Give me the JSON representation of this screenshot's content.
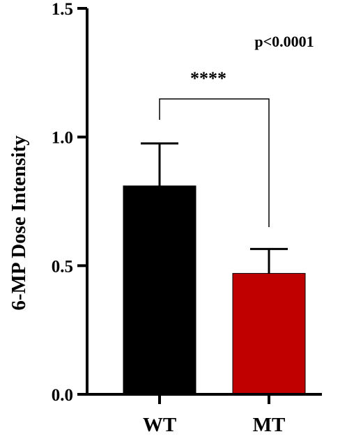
{
  "chart_data": {
    "type": "bar",
    "title": "",
    "xlabel": "",
    "ylabel": "6-MP Dose Intensity",
    "ylim": [
      0,
      1.5
    ],
    "yticks": [
      0.0,
      0.5,
      1.0,
      1.5
    ],
    "ytick_labels": [
      "0.0",
      "0.5",
      "1.0",
      "1.5"
    ],
    "categories": [
      "WT",
      "MT"
    ],
    "values": [
      0.81,
      0.47
    ],
    "errors": [
      0.165,
      0.095
    ],
    "colors": [
      "#000000",
      "#c00000"
    ],
    "grid": false,
    "annotations": {
      "p_value": "p<0.0001",
      "significance": "****"
    }
  }
}
